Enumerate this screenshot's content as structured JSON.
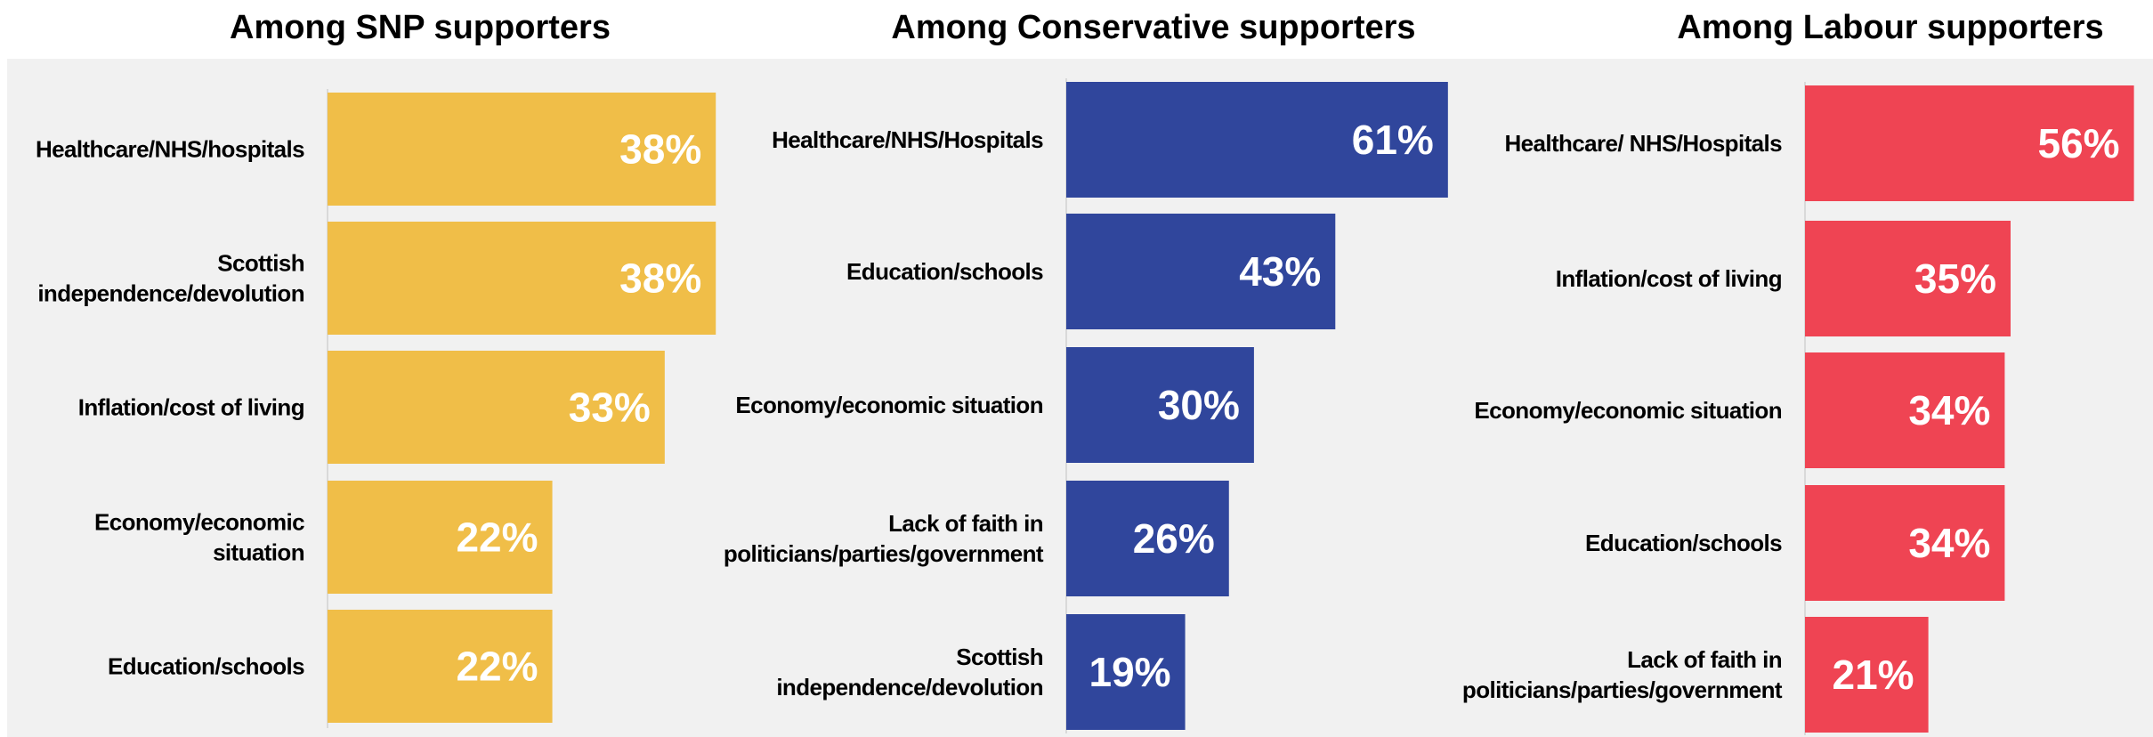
{
  "chart_data": [
    {
      "type": "bar",
      "orientation": "horizontal",
      "title": "Among SNP supporters",
      "color": "#F0BE48",
      "xlim": [
        0,
        75
      ],
      "categories": [
        "Healthcare/NHS/hospitals",
        "Scottish independence/devolution",
        "Inflation/cost of living",
        "Economy/economic situation",
        "Education/schools"
      ],
      "label_lines": [
        [
          "Healthcare/NHS/hospitals"
        ],
        [
          "Scottish",
          "independence/devolution"
        ],
        [
          "Inflation/cost of living"
        ],
        [
          "Economy/economic",
          "situation"
        ],
        [
          "Education/schools"
        ]
      ],
      "values": [
        38,
        38,
        33,
        22,
        22
      ],
      "value_labels": [
        "38%",
        "38%",
        "33%",
        "22%",
        "22%"
      ]
    },
    {
      "type": "bar",
      "orientation": "horizontal",
      "title": "Among Conservative supporters",
      "color": "#30469C",
      "xlim": [
        0,
        75
      ],
      "categories": [
        "Healthcare/NHS/Hospitals",
        "Education/schools",
        "Economy/economic situation",
        "Lack of faith in politicians/parties/government",
        "Scottish independence/devolution"
      ],
      "label_lines": [
        [
          "Healthcare/NHS/Hospitals"
        ],
        [
          "Education/schools"
        ],
        [
          "Economy/economic situation"
        ],
        [
          "Lack of faith in",
          "politicians/parties/government"
        ],
        [
          "Scottish",
          "independence/devolution"
        ]
      ],
      "values": [
        61,
        43,
        30,
        26,
        19
      ],
      "value_labels": [
        "61%",
        "43%",
        "30%",
        "26%",
        "19%"
      ]
    },
    {
      "type": "bar",
      "orientation": "horizontal",
      "title": "Among Labour supporters",
      "color": "#EF4453",
      "xlim": [
        0,
        75
      ],
      "categories": [
        "Healthcare/ NHS/Hospitals",
        "Inflation/cost of living",
        "Economy/economic situation",
        "Education/schools",
        "Lack of faith in politicians/parties/government"
      ],
      "label_lines": [
        [
          "Healthcare/ NHS/Hospitals"
        ],
        [
          "Inflation/cost of living"
        ],
        [
          "Economy/economic situation"
        ],
        [
          "Education/schools"
        ],
        [
          "Lack of faith in",
          "politicians/parties/government"
        ]
      ],
      "values": [
        56,
        35,
        34,
        34,
        21
      ],
      "value_labels": [
        "56%",
        "35%",
        "34%",
        "34%",
        "21%"
      ]
    }
  ]
}
